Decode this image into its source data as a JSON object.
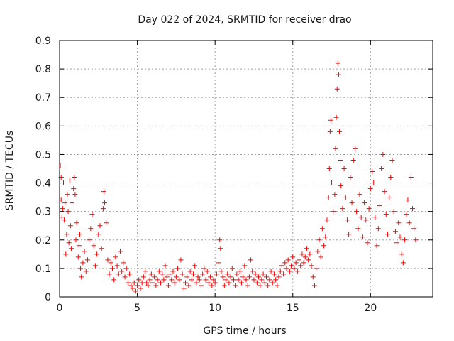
{
  "chart_data": {
    "type": "scatter",
    "title": "Day 022 of 2024, SRMTID for receiver drao",
    "xlabel": "GPS time / hours",
    "ylabel": "SRMTID / TECUs",
    "xlim": [
      0,
      24
    ],
    "ylim": [
      0,
      0.9
    ],
    "xticks": [
      0,
      5,
      10,
      15,
      20
    ],
    "xtick_labels": [
      "0",
      "5",
      "10",
      "15",
      "20"
    ],
    "yticks": [
      0,
      0.1,
      0.2,
      0.3,
      0.4,
      0.5,
      0.6,
      0.7,
      0.8,
      0.9
    ],
    "ytick_labels": [
      "0",
      "0.1",
      "0.2",
      "0.3",
      "0.4",
      "0.5",
      "0.6",
      "0.7",
      "0.8",
      "0.9"
    ],
    "grid": true,
    "marker": "+",
    "color": "#ff0000",
    "series": [
      {
        "name": "SRMTID",
        "points": [
          [
            0.05,
            0.46
          ],
          [
            0.1,
            0.42
          ],
          [
            0.1,
            0.34
          ],
          [
            0.15,
            0.28
          ],
          [
            0.2,
            0.31
          ],
          [
            0.25,
            0.4
          ],
          [
            0.3,
            0.27
          ],
          [
            0.35,
            0.33
          ],
          [
            0.4,
            0.15
          ],
          [
            0.45,
            0.22
          ],
          [
            0.5,
            0.36
          ],
          [
            0.55,
            0.3
          ],
          [
            0.6,
            0.19
          ],
          [
            0.65,
            0.41
          ],
          [
            0.7,
            0.25
          ],
          [
            0.75,
            0.17
          ],
          [
            0.8,
            0.33
          ],
          [
            0.9,
            0.38
          ],
          [
            0.95,
            0.42
          ],
          [
            1.0,
            0.36
          ],
          [
            1.05,
            0.2
          ],
          [
            1.1,
            0.26
          ],
          [
            1.2,
            0.14
          ],
          [
            1.25,
            0.18
          ],
          [
            1.3,
            0.22
          ],
          [
            1.35,
            0.1
          ],
          [
            1.4,
            0.07
          ],
          [
            1.5,
            0.12
          ],
          [
            1.6,
            0.16
          ],
          [
            1.7,
            0.09
          ],
          [
            1.8,
            0.13
          ],
          [
            1.9,
            0.2
          ],
          [
            2.0,
            0.24
          ],
          [
            2.1,
            0.29
          ],
          [
            2.2,
            0.18
          ],
          [
            2.3,
            0.11
          ],
          [
            2.4,
            0.15
          ],
          [
            2.5,
            0.22
          ],
          [
            2.6,
            0.25
          ],
          [
            2.7,
            0.17
          ],
          [
            2.8,
            0.31
          ],
          [
            2.85,
            0.37
          ],
          [
            2.9,
            0.33
          ],
          [
            3.0,
            0.26
          ],
          [
            3.1,
            0.13
          ],
          [
            3.2,
            0.08
          ],
          [
            3.3,
            0.12
          ],
          [
            3.4,
            0.1
          ],
          [
            3.5,
            0.06
          ],
          [
            3.6,
            0.14
          ],
          [
            3.7,
            0.11
          ],
          [
            3.8,
            0.08
          ],
          [
            3.9,
            0.16
          ],
          [
            4.0,
            0.09
          ],
          [
            4.1,
            0.12
          ],
          [
            4.2,
            0.07
          ],
          [
            4.3,
            0.1
          ],
          [
            4.4,
            0.05
          ],
          [
            4.5,
            0.08
          ],
          [
            4.6,
            0.04
          ],
          [
            4.7,
            0.03
          ],
          [
            4.8,
            0.05
          ],
          [
            4.9,
            0.02
          ],
          [
            5.0,
            0.04
          ],
          [
            5.1,
            0.06
          ],
          [
            5.2,
            0.03
          ],
          [
            5.3,
            0.05
          ],
          [
            5.4,
            0.07
          ],
          [
            5.5,
            0.09
          ],
          [
            5.6,
            0.05
          ],
          [
            5.7,
            0.04
          ],
          [
            5.8,
            0.06
          ],
          [
            5.9,
            0.08
          ],
          [
            6.0,
            0.05
          ],
          [
            6.1,
            0.07
          ],
          [
            6.2,
            0.04
          ],
          [
            6.3,
            0.06
          ],
          [
            6.4,
            0.09
          ],
          [
            6.5,
            0.05
          ],
          [
            6.6,
            0.08
          ],
          [
            6.7,
            0.06
          ],
          [
            6.8,
            0.11
          ],
          [
            6.9,
            0.07
          ],
          [
            7.0,
            0.04
          ],
          [
            7.1,
            0.08
          ],
          [
            7.2,
            0.06
          ],
          [
            7.3,
            0.09
          ],
          [
            7.4,
            0.05
          ],
          [
            7.5,
            0.07
          ],
          [
            7.6,
            0.1
          ],
          [
            7.7,
            0.06
          ],
          [
            7.8,
            0.13
          ],
          [
            7.9,
            0.08
          ],
          [
            8.0,
            0.03
          ],
          [
            8.1,
            0.05
          ],
          [
            8.2,
            0.07
          ],
          [
            8.3,
            0.04
          ],
          [
            8.4,
            0.09
          ],
          [
            8.5,
            0.06
          ],
          [
            8.6,
            0.08
          ],
          [
            8.7,
            0.11
          ],
          [
            8.8,
            0.05
          ],
          [
            8.9,
            0.07
          ],
          [
            9.0,
            0.06
          ],
          [
            9.1,
            0.04
          ],
          [
            9.2,
            0.08
          ],
          [
            9.3,
            0.1
          ],
          [
            9.4,
            0.06
          ],
          [
            9.5,
            0.09
          ],
          [
            9.6,
            0.05
          ],
          [
            9.7,
            0.07
          ],
          [
            9.8,
            0.04
          ],
          [
            9.9,
            0.06
          ],
          [
            10.0,
            0.05
          ],
          [
            10.1,
            0.08
          ],
          [
            10.2,
            0.12
          ],
          [
            10.3,
            0.2
          ],
          [
            10.35,
            0.17
          ],
          [
            10.4,
            0.09
          ],
          [
            10.5,
            0.07
          ],
          [
            10.6,
            0.04
          ],
          [
            10.7,
            0.06
          ],
          [
            10.8,
            0.08
          ],
          [
            10.9,
            0.05
          ],
          [
            11.0,
            0.07
          ],
          [
            11.1,
            0.1
          ],
          [
            11.2,
            0.06
          ],
          [
            11.3,
            0.04
          ],
          [
            11.4,
            0.08
          ],
          [
            11.5,
            0.06
          ],
          [
            11.6,
            0.09
          ],
          [
            11.7,
            0.05
          ],
          [
            11.8,
            0.07
          ],
          [
            11.9,
            0.11
          ],
          [
            12.0,
            0.06
          ],
          [
            12.1,
            0.04
          ],
          [
            12.2,
            0.07
          ],
          [
            12.3,
            0.13
          ],
          [
            12.4,
            0.09
          ],
          [
            12.5,
            0.06
          ],
          [
            12.6,
            0.08
          ],
          [
            12.7,
            0.05
          ],
          [
            12.8,
            0.07
          ],
          [
            12.9,
            0.04
          ],
          [
            13.0,
            0.06
          ],
          [
            13.1,
            0.08
          ],
          [
            13.2,
            0.05
          ],
          [
            13.3,
            0.07
          ],
          [
            13.4,
            0.04
          ],
          [
            13.5,
            0.06
          ],
          [
            13.6,
            0.09
          ],
          [
            13.7,
            0.05
          ],
          [
            13.8,
            0.08
          ],
          [
            13.9,
            0.06
          ],
          [
            14.0,
            0.04
          ],
          [
            14.1,
            0.07
          ],
          [
            14.2,
            0.09
          ],
          [
            14.3,
            0.11
          ],
          [
            14.4,
            0.08
          ],
          [
            14.5,
            0.12
          ],
          [
            14.6,
            0.1
          ],
          [
            14.7,
            0.13
          ],
          [
            14.8,
            0.09
          ],
          [
            14.9,
            0.11
          ],
          [
            15.0,
            0.14
          ],
          [
            15.1,
            0.1
          ],
          [
            15.2,
            0.12
          ],
          [
            15.3,
            0.09
          ],
          [
            15.4,
            0.13
          ],
          [
            15.5,
            0.11
          ],
          [
            15.6,
            0.15
          ],
          [
            15.7,
            0.12
          ],
          [
            15.8,
            0.14
          ],
          [
            15.9,
            0.17
          ],
          [
            16.0,
            0.13
          ],
          [
            16.1,
            0.15
          ],
          [
            16.2,
            0.11
          ],
          [
            16.3,
            0.07
          ],
          [
            16.4,
            0.04
          ],
          [
            16.5,
            0.1
          ],
          [
            16.6,
            0.16
          ],
          [
            16.7,
            0.2
          ],
          [
            16.8,
            0.14
          ],
          [
            16.9,
            0.24
          ],
          [
            17.0,
            0.18
          ],
          [
            17.1,
            0.21
          ],
          [
            17.2,
            0.27
          ],
          [
            17.3,
            0.35
          ],
          [
            17.35,
            0.45
          ],
          [
            17.4,
            0.58
          ],
          [
            17.45,
            0.62
          ],
          [
            17.5,
            0.4
          ],
          [
            17.6,
            0.3
          ],
          [
            17.7,
            0.36
          ],
          [
            17.75,
            0.52
          ],
          [
            17.8,
            0.63
          ],
          [
            17.85,
            0.73
          ],
          [
            17.9,
            0.82
          ],
          [
            17.95,
            0.78
          ],
          [
            18.0,
            0.58
          ],
          [
            18.05,
            0.48
          ],
          [
            18.1,
            0.39
          ],
          [
            18.2,
            0.31
          ],
          [
            18.3,
            0.45
          ],
          [
            18.4,
            0.35
          ],
          [
            18.5,
            0.27
          ],
          [
            18.6,
            0.22
          ],
          [
            18.7,
            0.42
          ],
          [
            18.8,
            0.33
          ],
          [
            18.9,
            0.48
          ],
          [
            19.0,
            0.52
          ],
          [
            19.1,
            0.3
          ],
          [
            19.2,
            0.24
          ],
          [
            19.3,
            0.36
          ],
          [
            19.4,
            0.28
          ],
          [
            19.5,
            0.21
          ],
          [
            19.6,
            0.33
          ],
          [
            19.7,
            0.27
          ],
          [
            19.8,
            0.19
          ],
          [
            19.9,
            0.31
          ],
          [
            20.0,
            0.38
          ],
          [
            20.1,
            0.44
          ],
          [
            20.2,
            0.4
          ],
          [
            20.3,
            0.28
          ],
          [
            20.4,
            0.18
          ],
          [
            20.5,
            0.24
          ],
          [
            20.6,
            0.32
          ],
          [
            20.7,
            0.45
          ],
          [
            20.8,
            0.5
          ],
          [
            20.9,
            0.37
          ],
          [
            21.0,
            0.29
          ],
          [
            21.1,
            0.22
          ],
          [
            21.2,
            0.35
          ],
          [
            21.3,
            0.42
          ],
          [
            21.4,
            0.48
          ],
          [
            21.5,
            0.3
          ],
          [
            21.6,
            0.23
          ],
          [
            21.7,
            0.19
          ],
          [
            21.8,
            0.26
          ],
          [
            21.9,
            0.21
          ],
          [
            22.0,
            0.15
          ],
          [
            22.1,
            0.12
          ],
          [
            22.2,
            0.2
          ],
          [
            22.3,
            0.29
          ],
          [
            22.4,
            0.34
          ],
          [
            22.5,
            0.26
          ],
          [
            22.6,
            0.42
          ],
          [
            22.7,
            0.31
          ],
          [
            22.8,
            0.24
          ],
          [
            22.9,
            0.2
          ]
        ]
      }
    ]
  }
}
